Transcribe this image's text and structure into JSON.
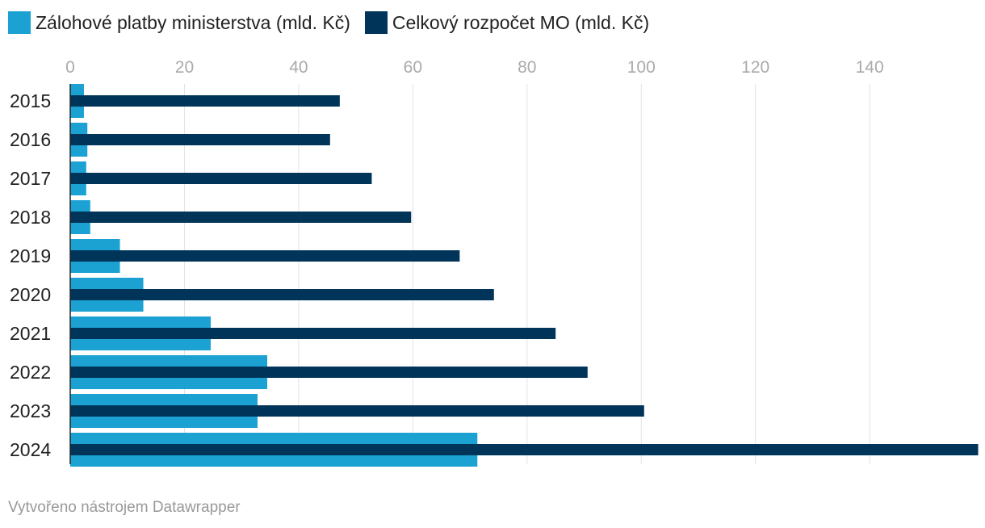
{
  "chart_data": {
    "type": "bar",
    "orientation": "horizontal",
    "title": "",
    "xlabel": "",
    "ylabel": "",
    "xlim": [
      0,
      158.5
    ],
    "xticks": [
      0,
      20,
      40,
      60,
      80,
      100,
      120,
      140
    ],
    "grid": true,
    "legend_position": "top-left",
    "categories": [
      "2015",
      "2016",
      "2017",
      "2018",
      "2019",
      "2020",
      "2021",
      "2022",
      "2023",
      "2024"
    ],
    "series": [
      {
        "name": "Zálohové platby ministerstva (mld. Kč)",
        "color": "#1ba2d3",
        "values": [
          2.4,
          3.0,
          2.8,
          3.5,
          8.7,
          12.8,
          24.6,
          34.5,
          32.8,
          71.3
        ]
      },
      {
        "name": "Celkový rozpočet MO (mld. Kč)",
        "color": "#003459",
        "values": [
          47.2,
          45.5,
          52.8,
          59.7,
          68.2,
          74.2,
          85.0,
          90.6,
          100.5,
          159.0
        ]
      }
    ]
  },
  "footer": {
    "credit": "Vytvořeno nástrojem Datawrapper"
  }
}
